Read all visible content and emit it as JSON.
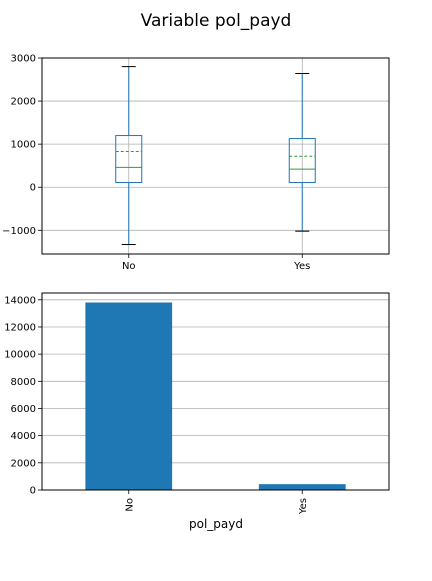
{
  "suptitle": "Variable pol_payd",
  "colors": {
    "box": "#1f77b4",
    "median": "#2ca02c",
    "mean": "#2ca02c",
    "bar": "#1f77b4",
    "grid": "#b0b0b0"
  },
  "chart_data": [
    {
      "type": "box",
      "categories": [
        "No",
        "Yes"
      ],
      "ylim": [
        -1550,
        3000
      ],
      "yticks": [
        3000,
        2000,
        1000,
        0,
        -1000
      ],
      "ytick_labels": [
        "3000",
        "2000",
        "1000",
        "0",
        "−1000"
      ],
      "grid": true,
      "boxes": [
        {
          "whisker_low": -1330,
          "q1": 110,
          "median": 460,
          "mean": 830,
          "q3": 1200,
          "whisker_high": 2800
        },
        {
          "whisker_low": -1020,
          "q1": 110,
          "median": 420,
          "mean": 720,
          "q3": 1130,
          "whisker_high": 2640
        }
      ]
    },
    {
      "type": "bar",
      "categories": [
        "No",
        "Yes"
      ],
      "values": [
        13800,
        430
      ],
      "ylim": [
        0,
        14500
      ],
      "yticks": [
        0,
        2000,
        4000,
        6000,
        8000,
        10000,
        12000,
        14000
      ],
      "ytick_labels": [
        "0",
        "2000",
        "4000",
        "6000",
        "8000",
        "10000",
        "12000",
        "14000"
      ],
      "xlabel": "pol_payd",
      "grid": true
    }
  ]
}
